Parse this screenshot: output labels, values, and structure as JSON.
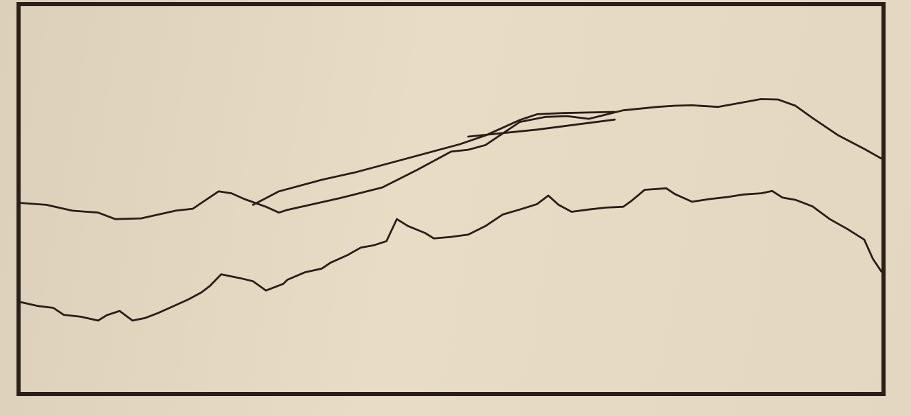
{
  "chart_data": {
    "type": "line",
    "xlim": [
      0,
      100
    ],
    "ylim": [
      0,
      100
    ],
    "grid": false,
    "legend": "none",
    "series": [
      {
        "color": "#2a1c16",
        "points": [
          [
            0,
            49
          ],
          [
            3,
            48.5
          ],
          [
            6,
            47
          ],
          [
            9,
            46.5
          ],
          [
            11,
            44.8
          ],
          [
            14,
            45
          ],
          [
            18,
            47
          ],
          [
            20,
            47.5
          ],
          [
            21,
            49
          ],
          [
            23,
            52
          ],
          [
            24.5,
            51.5
          ],
          [
            26,
            50
          ],
          [
            28.5,
            48
          ],
          [
            30,
            46.5
          ],
          [
            31,
            47.2
          ],
          [
            37,
            50.2
          ],
          [
            42,
            53
          ],
          [
            46,
            57.5
          ],
          [
            50,
            62.3
          ],
          [
            52,
            62.8
          ],
          [
            54,
            64
          ],
          [
            58,
            70
          ],
          [
            61,
            71.3
          ],
          [
            63.5,
            71.5
          ],
          [
            66,
            70.8
          ],
          [
            70,
            73
          ],
          [
            74,
            73.9
          ],
          [
            76,
            74.2
          ],
          [
            78,
            74.3
          ],
          [
            81,
            73.9
          ],
          [
            83,
            74.7
          ],
          [
            86,
            75.9
          ],
          [
            88,
            75.8
          ],
          [
            90,
            74.2
          ],
          [
            92,
            71
          ],
          [
            95,
            66.5
          ],
          [
            98,
            63
          ],
          [
            100,
            60.5
          ]
        ]
      },
      {
        "color": "#2a1c16",
        "points": [
          [
            27,
            48.5
          ],
          [
            30,
            52
          ],
          [
            35,
            55
          ],
          [
            39,
            57
          ],
          [
            44,
            60
          ],
          [
            51,
            64.2
          ],
          [
            54,
            66.5
          ],
          [
            58,
            70.5
          ],
          [
            60,
            72
          ],
          [
            63,
            72.3
          ],
          [
            69,
            72.6
          ]
        ]
      },
      {
        "color": "#2a1c16",
        "points": [
          [
            52,
            66.2
          ],
          [
            60,
            68
          ],
          [
            69,
            70.6
          ]
        ]
      },
      {
        "color": "#2a1c16",
        "points": [
          [
            0,
            23.3
          ],
          [
            2,
            22.3
          ],
          [
            3.8,
            21.8
          ],
          [
            5,
            20
          ],
          [
            7,
            19.5
          ],
          [
            9,
            18.5
          ],
          [
            10,
            19.9
          ],
          [
            11.5,
            21
          ],
          [
            13,
            18.5
          ],
          [
            14.5,
            19.2
          ],
          [
            16,
            20.5
          ],
          [
            18,
            22.5
          ],
          [
            19.5,
            24
          ],
          [
            21,
            25.8
          ],
          [
            22,
            27.5
          ],
          [
            23.3,
            30.5
          ],
          [
            25.5,
            29.5
          ],
          [
            27,
            28.7
          ],
          [
            28.5,
            26.3
          ],
          [
            30.5,
            28
          ],
          [
            31,
            29.1
          ],
          [
            33,
            31
          ],
          [
            35,
            32
          ],
          [
            36,
            33.5
          ],
          [
            38,
            35.5
          ],
          [
            39.5,
            37.4
          ],
          [
            41,
            38
          ],
          [
            42.5,
            39.1
          ],
          [
            43.7,
            44.8
          ],
          [
            45,
            43
          ],
          [
            47,
            41.2
          ],
          [
            48,
            39.8
          ],
          [
            50,
            40.2
          ],
          [
            52,
            40.8
          ],
          [
            54,
            43
          ],
          [
            56,
            46
          ],
          [
            58,
            47.3
          ],
          [
            60,
            48.7
          ],
          [
            61.3,
            50.9
          ],
          [
            62.5,
            48.5
          ],
          [
            64,
            46.7
          ],
          [
            66,
            47.3
          ],
          [
            68,
            47.8
          ],
          [
            70,
            48
          ],
          [
            71,
            49.6
          ],
          [
            72.5,
            52.4
          ],
          [
            75,
            52.8
          ],
          [
            76,
            51.3
          ],
          [
            78,
            49.3
          ],
          [
            80,
            50
          ],
          [
            82,
            50.5
          ],
          [
            84,
            51.2
          ],
          [
            86,
            51.5
          ],
          [
            87.3,
            52.1
          ],
          [
            88.5,
            50.4
          ],
          [
            90,
            49.8
          ],
          [
            92,
            48.1
          ],
          [
            94,
            44.8
          ],
          [
            96,
            42.3
          ],
          [
            98,
            39.5
          ],
          [
            99,
            34.5
          ],
          [
            100,
            31.2
          ]
        ]
      }
    ]
  }
}
